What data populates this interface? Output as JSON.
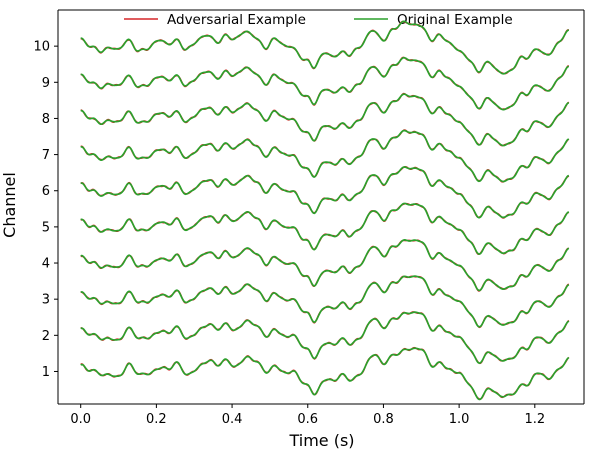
{
  "chart_data": {
    "type": "line",
    "xlabel": "Time (s)",
    "ylabel": "Channel",
    "xlim": [
      -0.06,
      1.33
    ],
    "ylim": [
      0.1,
      11.0
    ],
    "x_ticks": [
      0.0,
      0.2,
      0.4,
      0.6,
      0.8,
      1.0,
      1.2
    ],
    "x_tick_labels": [
      "0.0",
      "0.2",
      "0.4",
      "0.6",
      "0.8",
      "1.0",
      "1.2"
    ],
    "y_ticks": [
      1,
      2,
      3,
      4,
      5,
      6,
      7,
      8,
      9,
      10
    ],
    "y_tick_labels": [
      "1",
      "2",
      "3",
      "4",
      "5",
      "6",
      "7",
      "8",
      "9",
      "10"
    ],
    "grid": false,
    "legend_position": "top",
    "channels": [
      1,
      2,
      3,
      4,
      5,
      6,
      7,
      8,
      9,
      10
    ],
    "time_range_s": [
      0.0,
      1.29
    ],
    "series": [
      {
        "name": "Adversarial Example",
        "color": "#d62728"
      },
      {
        "name": "Original Example",
        "color": "#2ca02c"
      }
    ],
    "waveform_envelope": {
      "x": [
        0.0,
        0.1,
        0.2,
        0.3,
        0.4,
        0.5,
        0.6,
        0.62,
        0.7,
        0.8,
        0.85,
        0.9,
        1.0,
        1.05,
        1.1,
        1.2,
        1.29
      ],
      "offset": [
        0.0,
        -0.05,
        0.05,
        0.1,
        0.3,
        0.15,
        -0.3,
        -0.45,
        -0.15,
        0.35,
        0.6,
        0.5,
        -0.1,
        -0.55,
        -0.7,
        -0.25,
        0.25
      ]
    }
  }
}
